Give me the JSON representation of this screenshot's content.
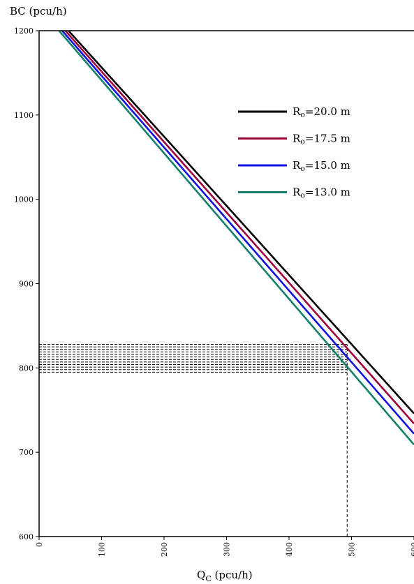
{
  "chart_data": {
    "type": "line",
    "xlabel": "Q",
    "xlabel_sub": "C",
    "xlabel_unit": " (pcu/h)",
    "ylabel": "BC (pcu/h)",
    "xlim": [
      0,
      600
    ],
    "ylim": [
      600,
      1200
    ],
    "x_ticks": [
      0,
      100,
      200,
      300,
      400,
      500,
      600
    ],
    "x_tick_labels": [
      "0",
      "100",
      "200",
      "300",
      "400",
      "500",
      "600"
    ],
    "y_ticks": [
      600,
      700,
      800,
      900,
      1000,
      1100,
      1200
    ],
    "y_tick_labels": [
      "600",
      "700",
      "800",
      "900",
      "1000",
      "1100",
      "1200"
    ],
    "grid": false,
    "legend_position": "upper-right",
    "series": [
      {
        "name": "R",
        "name_sub": "o",
        "name_suffix": "=20.0 m",
        "color": "#000000",
        "x": [
          47,
          600
        ],
        "y": [
          1200,
          746
        ]
      },
      {
        "name": "R",
        "name_sub": "o",
        "name_suffix": "=17.5 m",
        "color": "#a0003c",
        "x": [
          42,
          600
        ],
        "y": [
          1200,
          734
        ]
      },
      {
        "name": "R",
        "name_sub": "o",
        "name_suffix": "=15.0 m",
        "color": "#1010e0",
        "x": [
          37,
          600
        ],
        "y": [
          1200,
          722
        ]
      },
      {
        "name": "R",
        "name_sub": "o",
        "name_suffix": "=13.0 m",
        "color": "#12806a",
        "x": [
          32,
          600
        ],
        "y": [
          1200,
          709
        ]
      }
    ],
    "reference_lines": {
      "x_value": 493,
      "x_from_y": 600,
      "x_to_y": 828,
      "horizontal_y_values": [
        828,
        825,
        822,
        819,
        816,
        813,
        810,
        807,
        804,
        801,
        798,
        795
      ]
    }
  }
}
